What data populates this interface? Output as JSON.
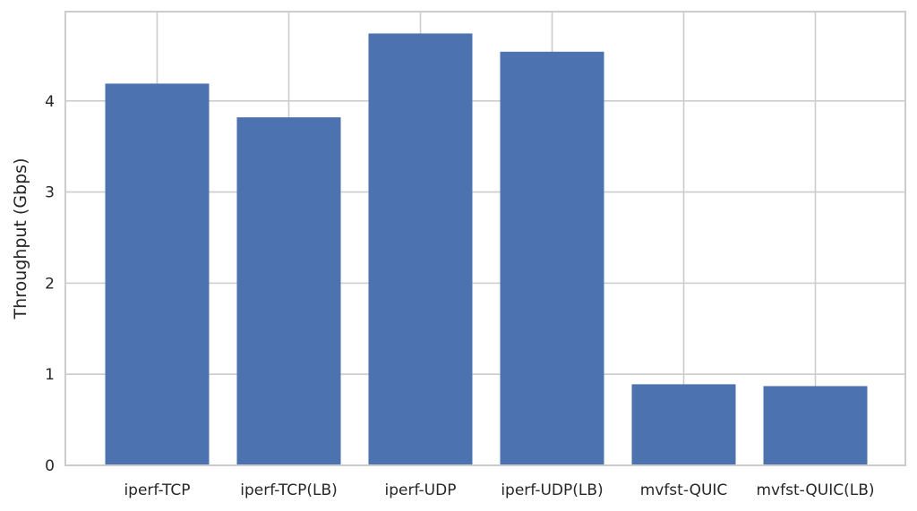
{
  "chart_data": {
    "type": "bar",
    "title": "",
    "xlabel": "",
    "ylabel": "Throughput (Gbps)",
    "categories": [
      "iperf-TCP",
      "iperf-TCP(LB)",
      "iperf-UDP",
      "iperf-UDP(LB)",
      "mvfst-QUIC",
      "mvfst-QUIC(LB)"
    ],
    "values": [
      4.19,
      3.82,
      4.74,
      4.54,
      0.89,
      0.87
    ],
    "ylim": [
      0,
      4.98
    ],
    "yticks": [
      "0",
      "1",
      "2",
      "3",
      "4"
    ],
    "grid": true,
    "bar_color": "#4c72b0",
    "grid_color": "#cccccc",
    "text_color": "#262626"
  }
}
